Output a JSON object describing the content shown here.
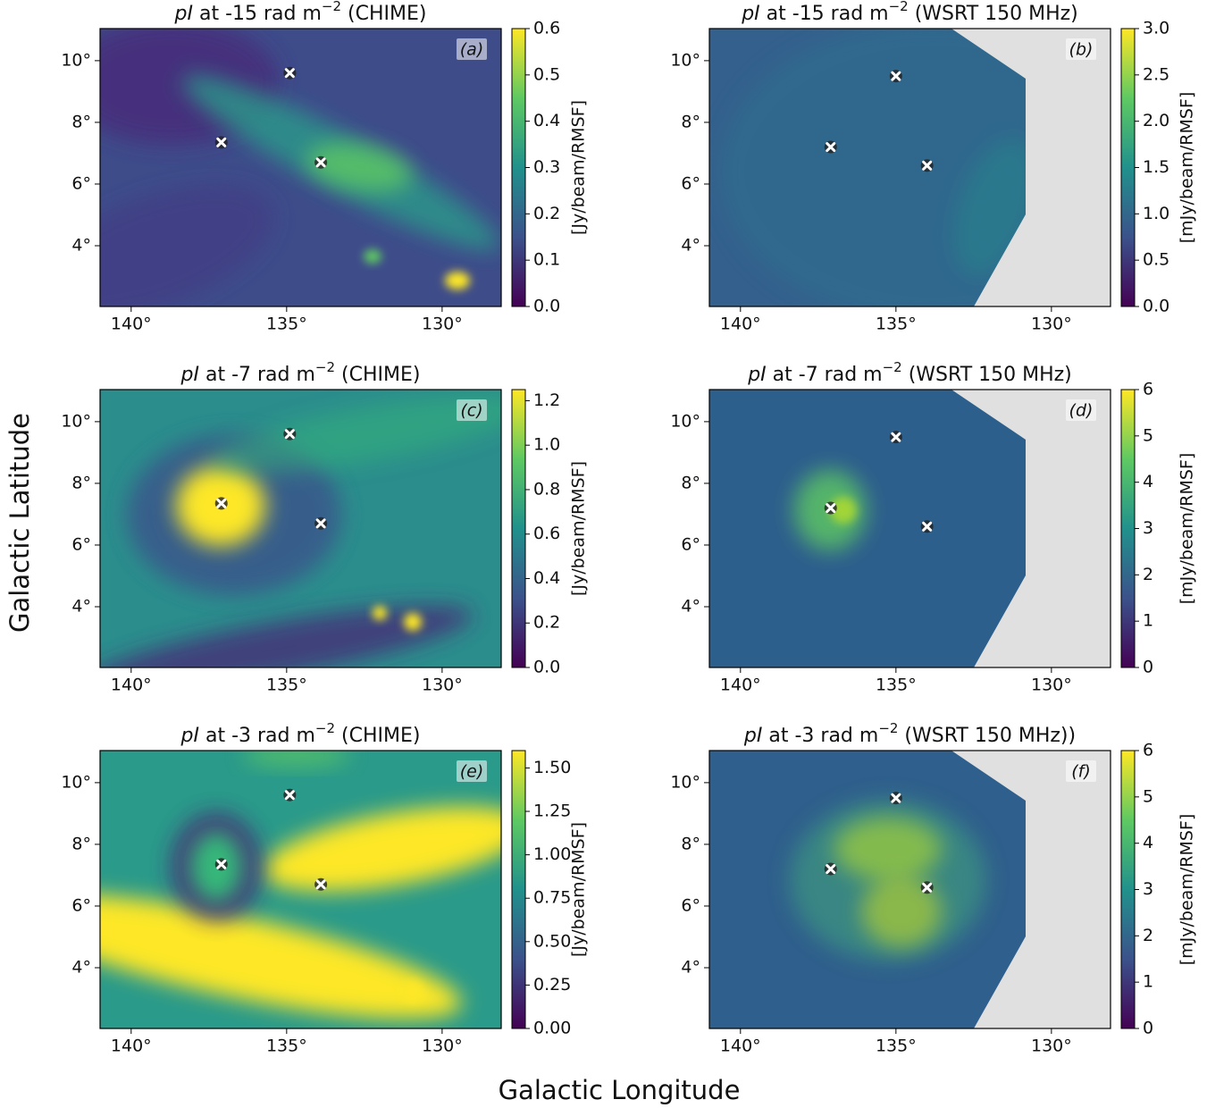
{
  "figure": {
    "xlabel": "Galactic Longitude",
    "ylabel": "Galactic Latitude"
  },
  "chart_data": [
    {
      "type": "heatmap",
      "title_parts": [
        "pI",
        " at -15 rad m",
        "−2",
        " (CHIME)"
      ],
      "panel_label": "(a)",
      "xlim": [
        141,
        128.1
      ],
      "ylim": [
        2.03,
        11.04
      ],
      "xticks": [
        {
          "value": 140,
          "label": "140°"
        },
        {
          "value": 135,
          "label": "135°"
        },
        {
          "value": 130,
          "label": "130°"
        }
      ],
      "yticks": [
        {
          "value": 4,
          "label": "4°"
        },
        {
          "value": 6,
          "label": "6°"
        },
        {
          "value": 8,
          "label": "8°"
        },
        {
          "value": 10,
          "label": "10°"
        }
      ],
      "colorbar_label": "[Jy/beam/RMSF]",
      "clim": [
        0,
        0.6
      ],
      "cticks": [
        {
          "value": 0,
          "label": "0.0"
        },
        0.1,
        0.2,
        0.3,
        0.4,
        0.5,
        0.6
      ],
      "points": {
        "x": [
          134.9,
          137.1,
          133.9
        ],
        "y": [
          9.6,
          7.35,
          6.7
        ]
      }
    },
    {
      "type": "heatmap",
      "title_parts": [
        "pI",
        " at -15 rad m",
        "−2",
        " (WSRT 150 MHz)"
      ],
      "panel_label": "(b)",
      "xlim": [
        141,
        128.1
      ],
      "ylim": [
        2.03,
        11.04
      ],
      "xticks": [
        {
          "value": 140,
          "label": "140°"
        },
        {
          "value": 135,
          "label": "135°"
        },
        {
          "value": 130,
          "label": "130°"
        }
      ],
      "yticks": [
        {
          "value": 4,
          "label": "4°"
        },
        {
          "value": 6,
          "label": "6°"
        },
        {
          "value": 8,
          "label": "8°"
        },
        {
          "value": 10,
          "label": "10°"
        }
      ],
      "colorbar_label": "[mJy/beam/RMSF]",
      "clim": [
        0,
        3
      ],
      "cticks": [
        {
          "value": 0,
          "label": "0.0"
        },
        0.5,
        {
          "value": 1,
          "label": "1.0"
        },
        1.5,
        {
          "value": 2,
          "label": "2.0"
        },
        2.5,
        {
          "value": 3,
          "label": "3.0"
        }
      ],
      "points": {
        "x": [
          135.0,
          137.1,
          134.0
        ],
        "y": [
          9.5,
          7.2,
          6.6
        ]
      }
    },
    {
      "type": "heatmap",
      "title_parts": [
        "pI",
        " at -7 rad m",
        "−2",
        " (CHIME)"
      ],
      "panel_label": "(c)",
      "xlim": [
        141,
        128.1
      ],
      "ylim": [
        2.03,
        11.04
      ],
      "xticks": [
        {
          "value": 140,
          "label": "140°"
        },
        {
          "value": 135,
          "label": "135°"
        },
        {
          "value": 130,
          "label": "130°"
        }
      ],
      "yticks": [
        {
          "value": 4,
          "label": "4°"
        },
        {
          "value": 6,
          "label": "6°"
        },
        {
          "value": 8,
          "label": "8°"
        },
        {
          "value": 10,
          "label": "10°"
        }
      ],
      "colorbar_label": "[Jy/beam/RMSF]",
      "clim": [
        0,
        1.25
      ],
      "cticks": [
        {
          "value": 0,
          "label": "0.0"
        },
        0.2,
        0.4,
        0.6,
        0.8,
        {
          "value": 1,
          "label": "1.0"
        },
        1.2
      ],
      "points": {
        "x": [
          134.9,
          137.1,
          133.9
        ],
        "y": [
          9.6,
          7.35,
          6.7
        ]
      }
    },
    {
      "type": "heatmap",
      "title_parts": [
        "pI",
        " at -7 rad m",
        "−2",
        " (WSRT 150 MHz)"
      ],
      "panel_label": "(d)",
      "xlim": [
        141,
        128.1
      ],
      "ylim": [
        2.03,
        11.04
      ],
      "xticks": [
        {
          "value": 140,
          "label": "140°"
        },
        {
          "value": 135,
          "label": "135°"
        },
        {
          "value": 130,
          "label": "130°"
        }
      ],
      "yticks": [
        {
          "value": 4,
          "label": "4°"
        },
        {
          "value": 6,
          "label": "6°"
        },
        {
          "value": 8,
          "label": "8°"
        },
        {
          "value": 10,
          "label": "10°"
        }
      ],
      "colorbar_label": "[mJy/beam/RMSF]",
      "clim": [
        0,
        6
      ],
      "cticks": [
        0,
        1,
        2,
        3,
        4,
        5,
        6
      ],
      "points": {
        "x": [
          135.0,
          137.1,
          134.0
        ],
        "y": [
          9.5,
          7.2,
          6.6
        ]
      }
    },
    {
      "type": "heatmap",
      "title_parts": [
        "pI",
        " at -3 rad m",
        "−2",
        " (CHIME)"
      ],
      "panel_label": "(e)",
      "xlim": [
        141,
        128.1
      ],
      "ylim": [
        2.03,
        11.04
      ],
      "xticks": [
        {
          "value": 140,
          "label": "140°"
        },
        {
          "value": 135,
          "label": "135°"
        },
        {
          "value": 130,
          "label": "130°"
        }
      ],
      "yticks": [
        {
          "value": 4,
          "label": "4°"
        },
        {
          "value": 6,
          "label": "6°"
        },
        {
          "value": 8,
          "label": "8°"
        },
        {
          "value": 10,
          "label": "10°"
        }
      ],
      "colorbar_label": "[Jy/beam/RMSF]",
      "clim": [
        0,
        1.6
      ],
      "cticks": [
        {
          "value": 0,
          "label": "0.00"
        },
        0.25,
        {
          "value": 0.5,
          "label": "0.50"
        },
        0.75,
        {
          "value": 1,
          "label": "1.00"
        },
        1.25,
        {
          "value": 1.5,
          "label": "1.50"
        }
      ],
      "points": {
        "x": [
          134.9,
          137.1,
          133.9
        ],
        "y": [
          9.6,
          7.35,
          6.7
        ]
      }
    },
    {
      "type": "heatmap",
      "title_parts": [
        "pI",
        " at -3 rad m",
        "−2",
        " (WSRT 150 MHz))"
      ],
      "panel_label": "(f)",
      "xlim": [
        141,
        128.1
      ],
      "ylim": [
        2.03,
        11.04
      ],
      "xticks": [
        {
          "value": 140,
          "label": "140°"
        },
        {
          "value": 135,
          "label": "135°"
        },
        {
          "value": 130,
          "label": "130°"
        }
      ],
      "yticks": [
        {
          "value": 4,
          "label": "4°"
        },
        {
          "value": 6,
          "label": "6°"
        },
        {
          "value": 8,
          "label": "8°"
        },
        {
          "value": 10,
          "label": "10°"
        }
      ],
      "colorbar_label": "[mJy/beam/RMSF]",
      "clim": [
        0,
        6
      ],
      "cticks": [
        0,
        1,
        2,
        3,
        4,
        5,
        6
      ],
      "points": {
        "x": [
          135.0,
          137.1,
          134.0
        ],
        "y": [
          9.5,
          7.2,
          6.6
        ]
      }
    }
  ]
}
